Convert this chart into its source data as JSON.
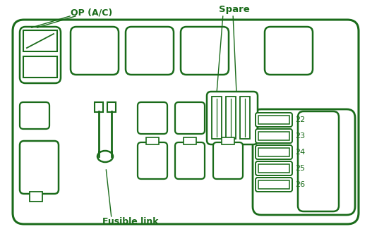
{
  "bg_color": "#ffffff",
  "line_color": "#1a6b1a",
  "text_color": "#1a6b1a",
  "labels": {
    "op_ac": "OP (A/C)",
    "spare": "Spare",
    "fusible_link": "Fusible link"
  },
  "fuse_numbers": [
    "22",
    "23",
    "24",
    "25",
    "26"
  ]
}
